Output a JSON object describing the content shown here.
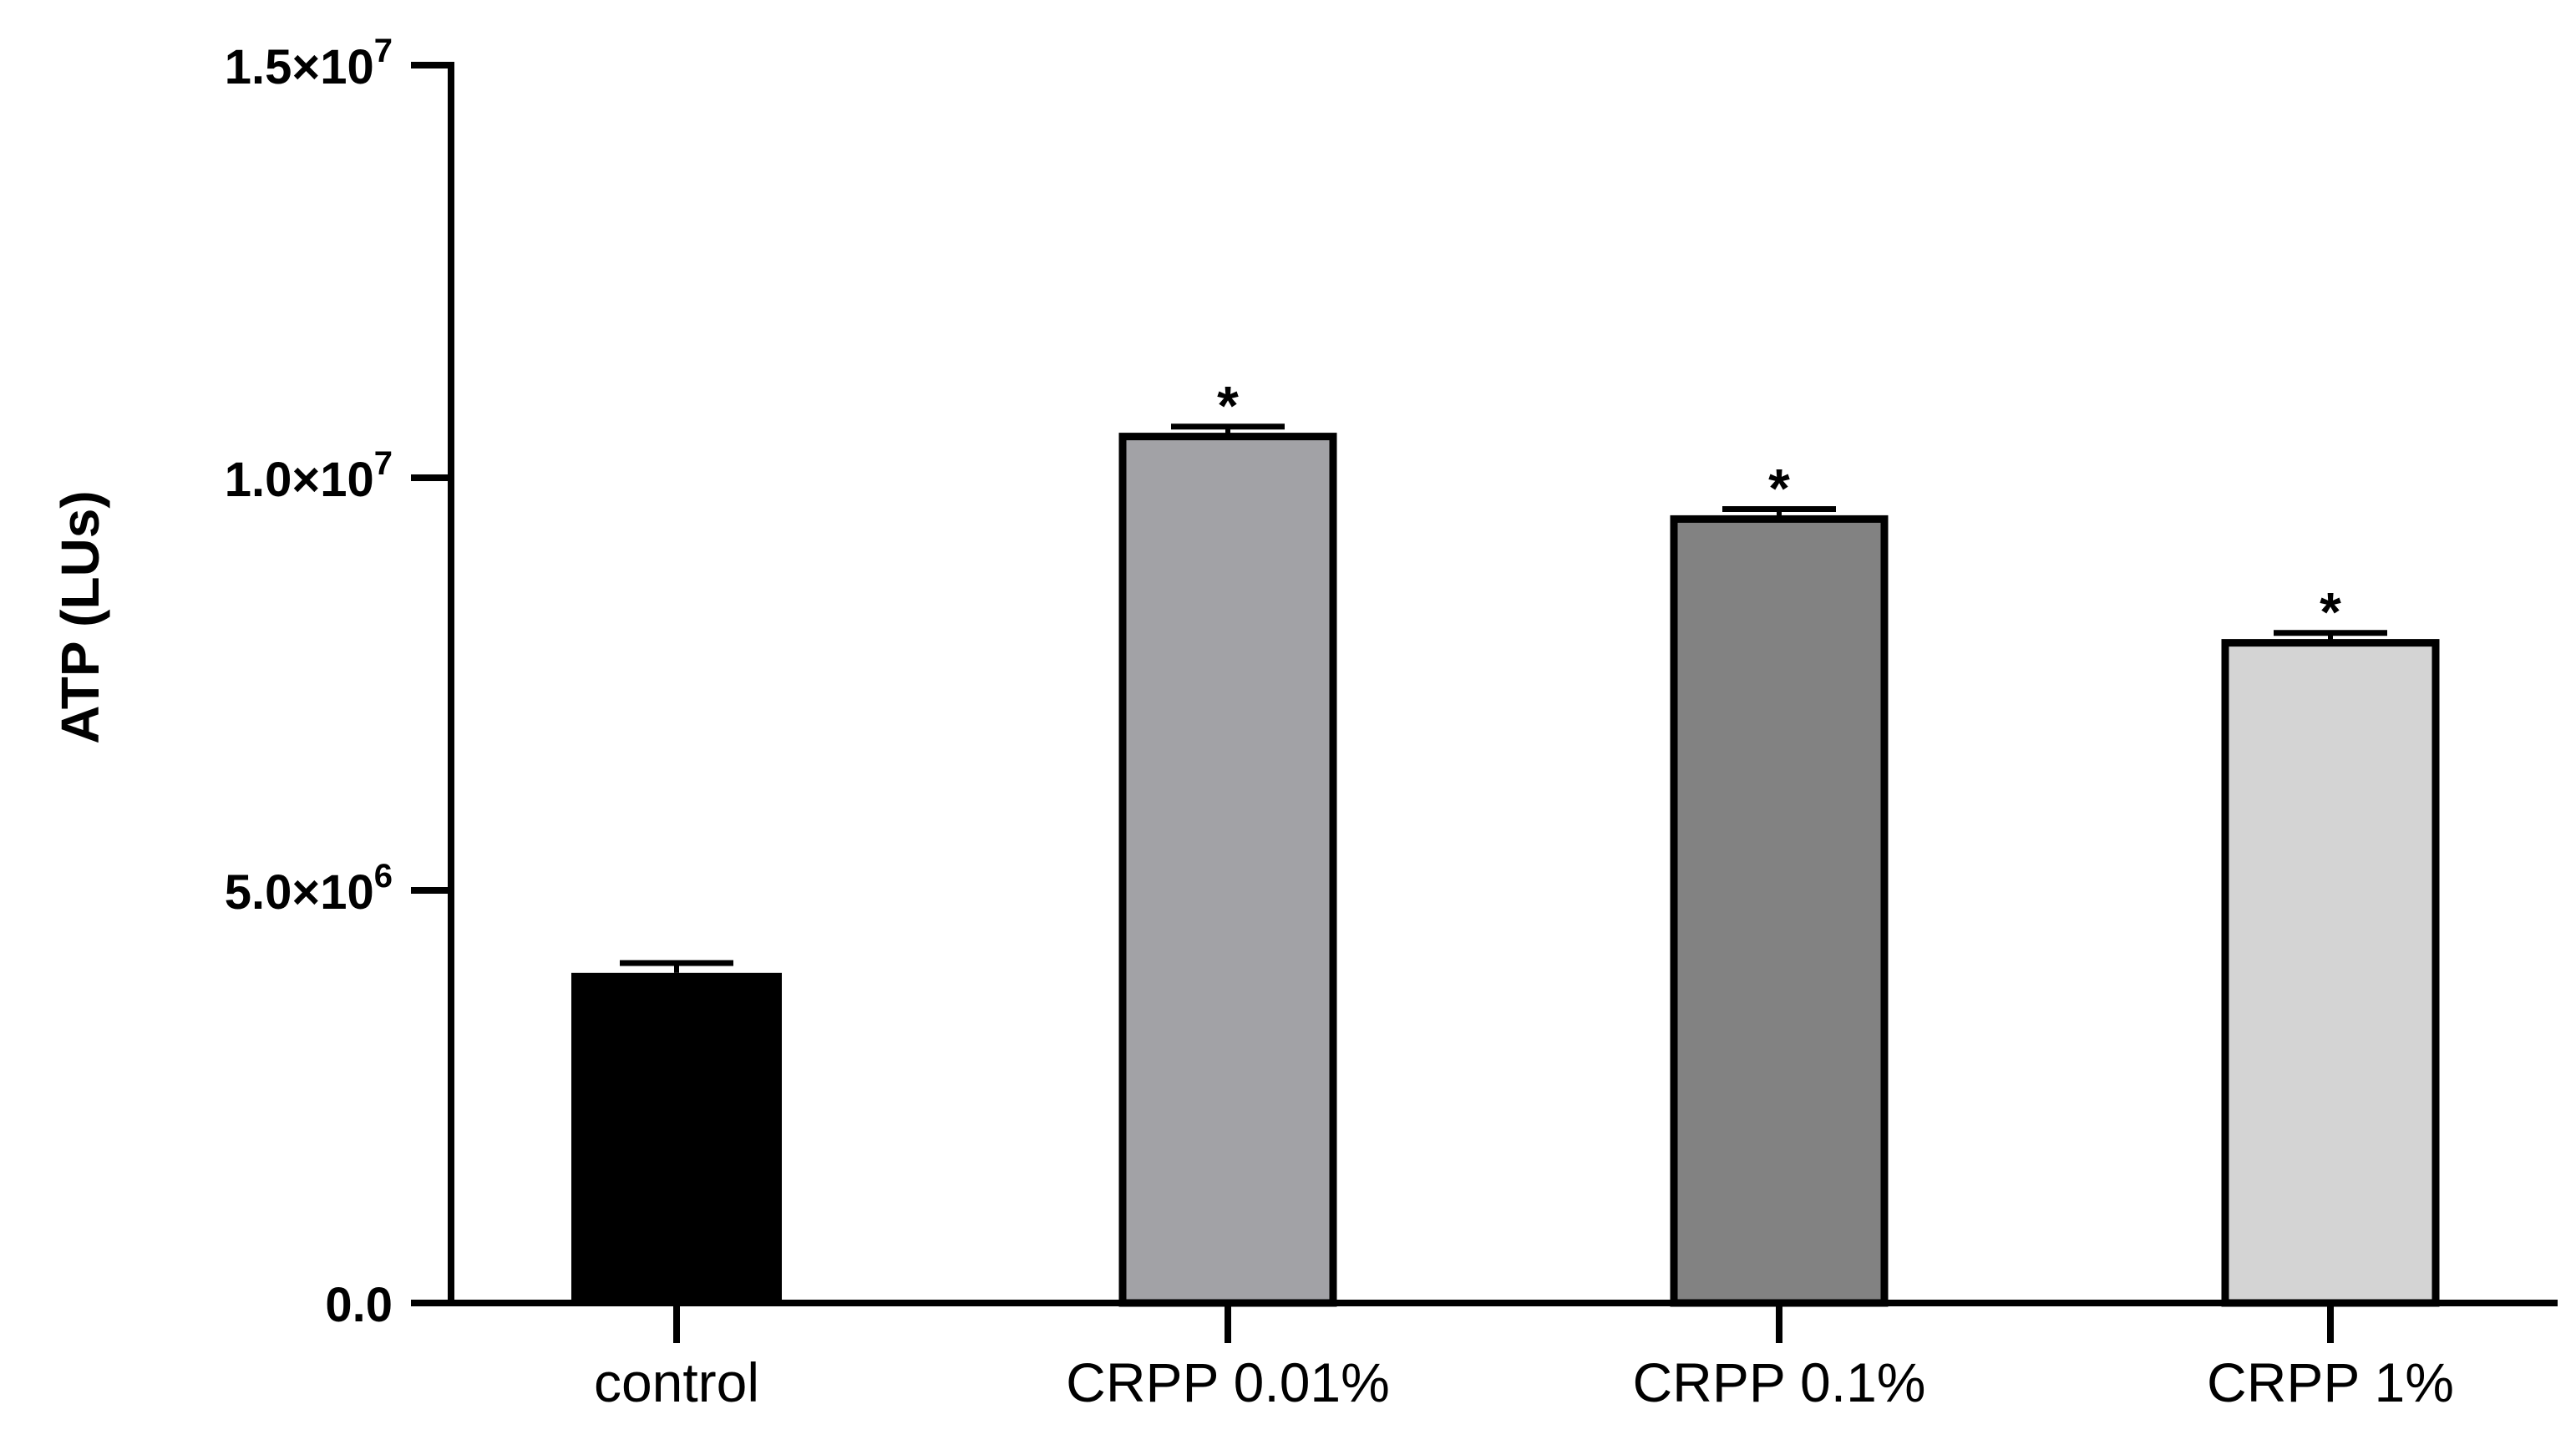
{
  "chart_data": {
    "type": "bar",
    "title": "",
    "xlabel": "",
    "ylabel": "ATP (LUs)",
    "categories": [
      "control",
      "CRPP 0.01%",
      "CRPP 0.1%",
      "CRPP 1%"
    ],
    "values": [
      4000000,
      10500000,
      9500000,
      8000000
    ],
    "errors": [
      120000,
      120000,
      120000,
      120000
    ],
    "significance": [
      "",
      "*",
      "*",
      "*"
    ],
    "bar_colors": [
      "#000000",
      "#a2a2a6",
      "#828282",
      "#d4d4d4"
    ],
    "ylim": [
      0,
      15000000
    ],
    "yticks": [
      {
        "value": 0,
        "mantissa": "0.0",
        "exponent": ""
      },
      {
        "value": 5000000,
        "mantissa": "5.0×10",
        "exponent": "6"
      },
      {
        "value": 10000000,
        "mantissa": "1.0×10",
        "exponent": "7"
      },
      {
        "value": 15000000,
        "mantissa": "1.5×10",
        "exponent": "7"
      }
    ],
    "grid": false,
    "legend": "none"
  }
}
